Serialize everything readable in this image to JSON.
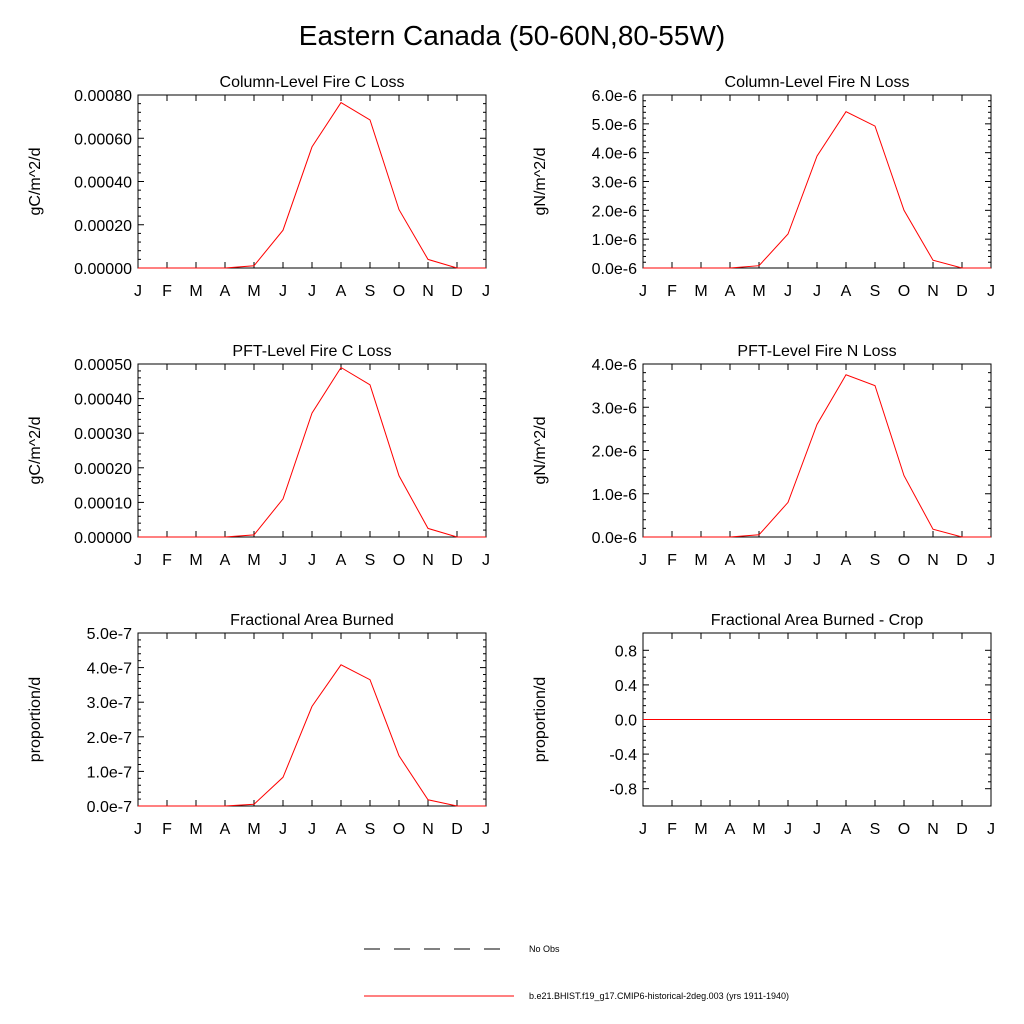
{
  "title": "Eastern Canada (50-60N,80-55W)",
  "chart_data": [
    {
      "type": "line",
      "title": "Column-Level Fire C Loss",
      "ylabel": "gC/m^2/d",
      "categories": [
        "J",
        "F",
        "M",
        "A",
        "M",
        "J",
        "J",
        "A",
        "S",
        "O",
        "N",
        "D",
        "J"
      ],
      "ylim": [
        0,
        0.0008
      ],
      "yticks": [
        0,
        0.0002,
        0.0004,
        0.0006,
        0.0008
      ],
      "ytick_labels": [
        "0.00000",
        "0.00020",
        "0.00040",
        "0.00060",
        "0.00080"
      ],
      "series": [
        {
          "values": [
            0,
            0,
            0,
            0,
            1e-05,
            0.000175,
            0.00056,
            0.000765,
            0.000685,
            0.00027,
            4e-05,
            0,
            0
          ],
          "color": "#ff0000"
        }
      ]
    },
    {
      "type": "line",
      "title": "Column-Level Fire N Loss",
      "ylabel": "gN/m^2/d",
      "categories": [
        "J",
        "F",
        "M",
        "A",
        "M",
        "J",
        "J",
        "A",
        "S",
        "O",
        "N",
        "D",
        "J"
      ],
      "ylim": [
        0,
        6e-06
      ],
      "yticks": [
        0,
        1e-06,
        2e-06,
        3e-06,
        4e-06,
        5e-06,
        6e-06
      ],
      "ytick_labels": [
        "0.0e-6",
        "1.0e-6",
        "2.0e-6",
        "3.0e-6",
        "4.0e-6",
        "5.0e-6",
        "6.0e-6"
      ],
      "series": [
        {
          "values": [
            0,
            0,
            0,
            0,
            8e-08,
            1.18e-06,
            3.88e-06,
            5.42e-06,
            4.92e-06,
            2e-06,
            2.7e-07,
            0,
            0
          ],
          "color": "#ff0000"
        }
      ]
    },
    {
      "type": "line",
      "title": "PFT-Level Fire C Loss",
      "ylabel": "gC/m^2/d",
      "categories": [
        "J",
        "F",
        "M",
        "A",
        "M",
        "J",
        "J",
        "A",
        "S",
        "O",
        "N",
        "D",
        "J"
      ],
      "ylim": [
        0,
        0.0005
      ],
      "yticks": [
        0,
        0.0001,
        0.0002,
        0.0003,
        0.0004,
        0.0005
      ],
      "ytick_labels": [
        "0.00000",
        "0.00010",
        "0.00020",
        "0.00030",
        "0.00040",
        "0.00050"
      ],
      "series": [
        {
          "values": [
            0,
            0,
            0,
            0,
            6e-06,
            0.00011,
            0.000358,
            0.00049,
            0.00044,
            0.000177,
            2.5e-05,
            0,
            0
          ],
          "color": "#ff0000"
        }
      ]
    },
    {
      "type": "line",
      "title": "PFT-Level Fire N Loss",
      "ylabel": "gN/m^2/d",
      "categories": [
        "J",
        "F",
        "M",
        "A",
        "M",
        "J",
        "J",
        "A",
        "S",
        "O",
        "N",
        "D",
        "J"
      ],
      "ylim": [
        0,
        4e-06
      ],
      "yticks": [
        0,
        1e-06,
        2e-06,
        3e-06,
        4e-06
      ],
      "ytick_labels": [
        "0.0e-6",
        "1.0e-6",
        "2.0e-6",
        "3.0e-6",
        "4.0e-6"
      ],
      "series": [
        {
          "values": [
            0,
            0,
            0,
            0,
            5e-08,
            8e-07,
            2.6e-06,
            3.75e-06,
            3.5e-06,
            1.42e-06,
            1.8e-07,
            0,
            0
          ],
          "color": "#ff0000"
        }
      ]
    },
    {
      "type": "line",
      "title": "Fractional Area Burned",
      "ylabel": "proportion/d",
      "categories": [
        "J",
        "F",
        "M",
        "A",
        "M",
        "J",
        "J",
        "A",
        "S",
        "O",
        "N",
        "D",
        "J"
      ],
      "ylim": [
        0,
        5e-07
      ],
      "yticks": [
        0,
        1e-07,
        2e-07,
        3e-07,
        4e-07,
        5e-07
      ],
      "ytick_labels": [
        "0.0e-7",
        "1.0e-7",
        "2.0e-7",
        "3.0e-7",
        "4.0e-7",
        "5.0e-7"
      ],
      "series": [
        {
          "values": [
            0,
            0,
            0,
            0,
            5e-09,
            8.3e-08,
            2.88e-07,
            4.08e-07,
            3.65e-07,
            1.45e-07,
            1.8e-08,
            0,
            0
          ],
          "color": "#ff0000"
        }
      ]
    },
    {
      "type": "line",
      "title": "Fractional Area Burned - Crop",
      "ylabel": "proportion/d",
      "categories": [
        "J",
        "F",
        "M",
        "A",
        "M",
        "J",
        "J",
        "A",
        "S",
        "O",
        "N",
        "D",
        "J"
      ],
      "ylim": [
        -1.0,
        1.0
      ],
      "yticks": [
        -0.8,
        -0.4,
        0.0,
        0.4,
        0.8
      ],
      "ytick_labels": [
        "-0.8",
        "-0.4",
        "0.0",
        "0.4",
        "0.8"
      ],
      "series": [
        {
          "values": [
            0,
            0,
            0,
            0,
            0,
            0,
            0,
            0,
            0,
            0,
            0,
            0,
            0
          ],
          "color": "#ff0000"
        }
      ]
    }
  ],
  "legend": {
    "items": [
      {
        "label": "No Obs",
        "style": "dashed",
        "color": "#000000"
      },
      {
        "label": "b.e21.BHIST.f19_g17.CMIP6-historical-2deg.003 (yrs 1911-1940)",
        "style": "solid",
        "color": "#ff0000"
      }
    ]
  }
}
